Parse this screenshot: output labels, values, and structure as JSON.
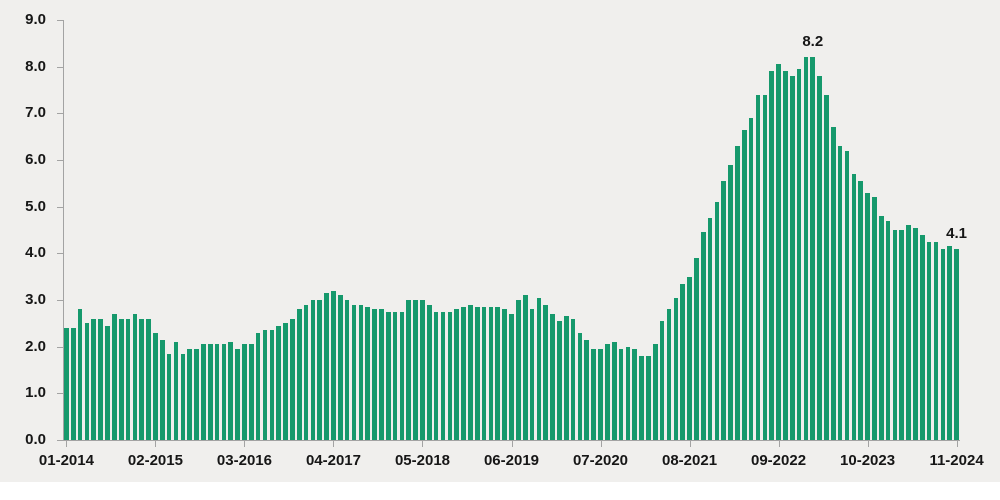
{
  "chart_data": {
    "type": "bar",
    "title": "",
    "xlabel": "",
    "ylabel": "",
    "ylim": [
      0,
      9
    ],
    "grid": false,
    "legend": null,
    "bar_color": "#16996c",
    "background_color": "#f0efed",
    "axis_color": "#a3a3a3",
    "text_color": "#161616",
    "start_month": "01-2014",
    "end_month": "11-2024",
    "values": [
      2.4,
      2.4,
      2.8,
      2.5,
      2.6,
      2.6,
      2.45,
      2.7,
      2.6,
      2.6,
      2.7,
      2.6,
      2.6,
      2.3,
      2.15,
      1.85,
      2.1,
      1.85,
      1.95,
      1.95,
      2.05,
      2.05,
      2.05,
      2.05,
      2.1,
      1.95,
      2.05,
      2.05,
      2.3,
      2.35,
      2.35,
      2.45,
      2.5,
      2.6,
      2.8,
      2.9,
      3.0,
      3.0,
      3.15,
      3.2,
      3.1,
      3.0,
      2.9,
      2.9,
      2.85,
      2.8,
      2.8,
      2.75,
      2.75,
      2.75,
      3.0,
      3.0,
      3.0,
      2.9,
      2.75,
      2.75,
      2.75,
      2.8,
      2.85,
      2.9,
      2.85,
      2.85,
      2.85,
      2.85,
      2.8,
      2.7,
      3.0,
      3.1,
      2.8,
      3.05,
      2.9,
      2.7,
      2.55,
      2.65,
      2.6,
      2.3,
      2.15,
      1.95,
      1.95,
      2.05,
      2.1,
      1.95,
      2.0,
      1.95,
      1.8,
      1.8,
      2.05,
      2.55,
      2.8,
      3.05,
      3.35,
      3.5,
      3.9,
      4.45,
      4.75,
      5.1,
      5.55,
      5.9,
      6.3,
      6.65,
      6.9,
      7.4,
      7.4,
      7.9,
      8.05,
      7.9,
      7.8,
      7.95,
      8.2,
      8.2,
      7.8,
      7.4,
      6.7,
      6.3,
      6.2,
      5.7,
      5.55,
      5.3,
      5.2,
      4.8,
      4.7,
      4.5,
      4.5,
      4.6,
      4.55,
      4.4,
      4.25,
      4.25,
      4.1,
      4.15,
      4.1
    ],
    "ytick_labels": [
      "0.0",
      "1.0",
      "2.0",
      "3.0",
      "4.0",
      "5.0",
      "6.0",
      "7.0",
      "8.0",
      "9.0"
    ],
    "xtick_labels": [
      "01-2014",
      "02-2015",
      "03-2016",
      "04-2017",
      "05-2018",
      "06-2019",
      "07-2020",
      "08-2021",
      "09-2022",
      "10-2023",
      "11-2024"
    ],
    "xtick_bar_positions": [
      1,
      14,
      27,
      40,
      53,
      66,
      79,
      92,
      105,
      118,
      131
    ],
    "annotations": [
      {
        "bar": 110,
        "text": "8.2"
      },
      {
        "bar": 131,
        "text": "4.1"
      }
    ]
  }
}
